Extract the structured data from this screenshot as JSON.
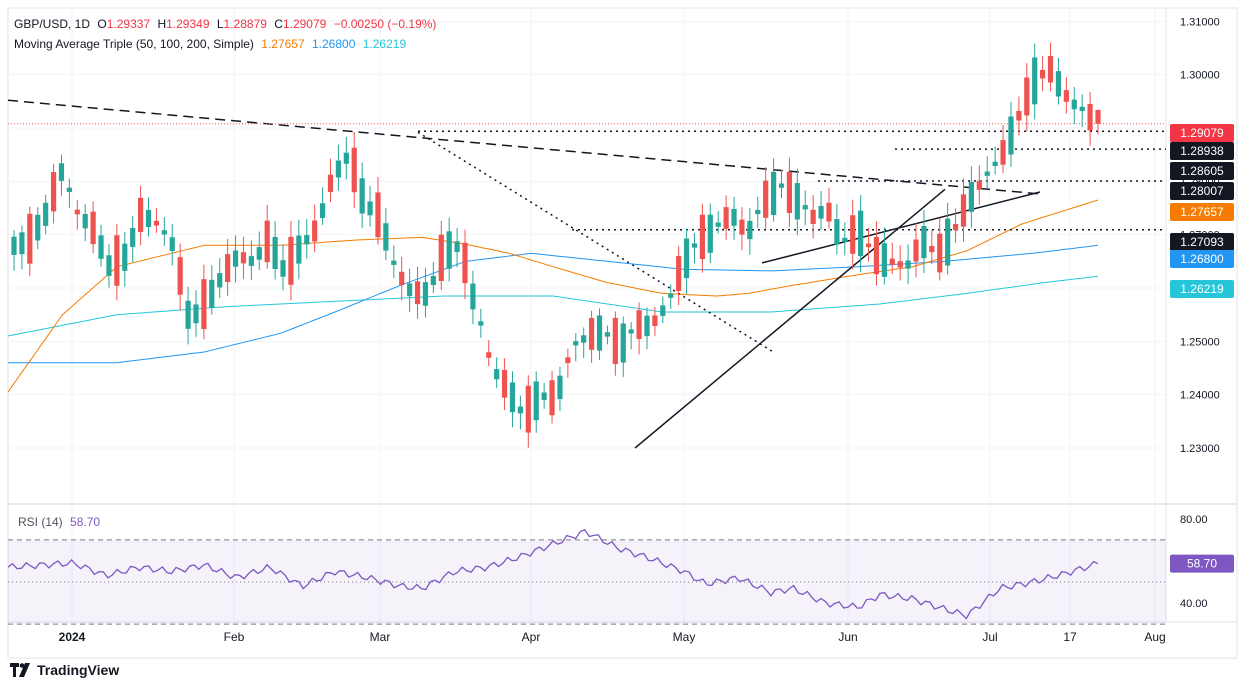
{
  "header": {
    "symbol": "GBP/USD, 1D",
    "ohlc": [
      {
        "k": "O",
        "v": "1.29337"
      },
      {
        "k": "H",
        "v": "1.29349"
      },
      {
        "k": "L",
        "v": "1.28879"
      },
      {
        "k": "C",
        "v": "1.29079"
      }
    ],
    "change": "−0.00250 (−0.19%)",
    "ma_label": "Moving Average Triple (50, 100, 200, Simple)",
    "ma_values": [
      "1.27657",
      "1.26800",
      "1.26219"
    ]
  },
  "rsi": {
    "label": "RSI (14)",
    "value": "58.70"
  },
  "brand": "TradingView",
  "colors": {
    "up": "#26a69a",
    "down": "#ef5350",
    "ma50": "#f57c00",
    "ma100": "#2196f3",
    "ma200": "#26c6da",
    "rsi": "#7e57c2",
    "price_badge": "#f23645",
    "level_badge": "#131722"
  },
  "chart_data": {
    "type": "candlestick",
    "price_axis": {
      "ticks": [
        "1.31000",
        "1.30000",
        "1.29000",
        "1.28000",
        "1.27000",
        "1.26000",
        "1.25000",
        "1.24000",
        "1.23000"
      ],
      "ylim": [
        1.2195,
        1.3125
      ]
    },
    "time_axis": {
      "labels": [
        "2024",
        "Feb",
        "Mar",
        "Apr",
        "May",
        "Jun",
        "Jul",
        "17",
        "Aug"
      ]
    },
    "badges": [
      {
        "label": "1.29079",
        "type": "last"
      },
      {
        "label": "1.28938",
        "type": "level"
      },
      {
        "label": "1.28605",
        "type": "level"
      },
      {
        "label": "1.28007",
        "type": "level"
      },
      {
        "label": "1.27657",
        "type": "ma50"
      },
      {
        "label": "1.27093",
        "type": "level"
      },
      {
        "label": "1.26800",
        "type": "ma100"
      },
      {
        "label": "1.26219",
        "type": "ma200"
      }
    ],
    "keypoints": [
      [
        1.27,
        1.268
      ],
      [
        1.2715,
        1.269
      ],
      [
        1.267,
        1.274
      ],
      [
        1.275,
        1.282
      ],
      [
        1.27,
        1.274
      ],
      [
        1.268,
        1.271
      ],
      [
        1.268,
        1.264
      ],
      [
        1.262,
        1.266
      ],
      [
        1.266,
        1.274
      ],
      [
        1.273,
        1.272
      ],
      [
        1.271,
        1.268
      ],
      [
        1.268,
        1.254
      ],
      [
        1.255,
        1.257
      ],
      [
        1.256,
        1.262
      ],
      [
        1.262,
        1.266
      ],
      [
        1.266,
        1.265
      ],
      [
        1.264,
        1.269
      ],
      [
        1.269,
        1.263
      ],
      [
        1.263,
        1.268
      ],
      [
        1.268,
        1.271
      ],
      [
        1.271,
        1.281
      ],
      [
        1.282,
        1.285
      ],
      [
        1.284,
        1.276
      ],
      [
        1.276,
        1.273
      ],
      [
        1.273,
        1.263
      ],
      [
        1.262,
        1.259
      ],
      [
        1.259,
        1.259
      ],
      [
        1.259,
        1.267
      ],
      [
        1.267,
        1.268
      ],
      [
        1.268,
        1.256
      ],
      [
        1.256,
        1.245
      ],
      [
        1.244,
        1.241
      ],
      [
        1.24,
        1.236
      ],
      [
        1.236,
        1.24
      ],
      [
        1.234,
        1.239
      ],
      [
        1.24,
        1.249
      ],
      [
        1.249,
        1.251
      ],
      [
        1.251,
        1.252
      ],
      [
        1.252,
        1.249
      ],
      [
        1.25,
        1.253
      ],
      [
        1.251,
        1.253
      ],
      [
        1.253,
        1.257
      ],
      [
        1.257,
        1.265
      ],
      [
        1.266,
        1.269
      ],
      [
        1.268,
        1.271
      ],
      [
        1.272,
        1.274
      ],
      [
        1.273,
        1.27
      ],
      [
        1.269,
        1.276
      ],
      [
        1.276,
        1.279
      ],
      [
        1.278,
        1.277
      ],
      [
        1.278,
        1.273
      ],
      [
        1.273,
        1.275
      ],
      [
        1.271,
        1.268
      ],
      [
        1.268,
        1.271
      ],
      [
        1.271,
        1.266
      ],
      [
        1.266,
        1.265
      ],
      [
        1.265,
        1.264
      ],
      [
        1.264,
        1.269
      ],
      [
        1.269,
        1.266
      ],
      [
        1.266,
        1.271
      ],
      [
        1.271,
        1.277
      ],
      [
        1.277,
        1.281
      ],
      [
        1.28,
        1.285
      ],
      [
        1.285,
        1.292
      ],
      [
        1.292,
        1.299
      ],
      [
        1.299,
        1.301
      ],
      [
        1.301,
        1.296
      ],
      [
        1.296,
        1.293
      ],
      [
        1.293,
        1.2908
      ]
    ],
    "ma50_keypoints": [
      [
        0,
        1.2405
      ],
      [
        0.05,
        1.255
      ],
      [
        0.1,
        1.264
      ],
      [
        0.18,
        1.268
      ],
      [
        0.25,
        1.268
      ],
      [
        0.32,
        1.269
      ],
      [
        0.38,
        1.2695
      ],
      [
        0.42,
        1.2682
      ],
      [
        0.46,
        1.2665
      ],
      [
        0.5,
        1.264
      ],
      [
        0.55,
        1.261
      ],
      [
        0.6,
        1.259
      ],
      [
        0.65,
        1.2585
      ],
      [
        0.68,
        1.259
      ],
      [
        0.72,
        1.2605
      ],
      [
        0.78,
        1.2625
      ],
      [
        0.83,
        1.264
      ],
      [
        0.88,
        1.267
      ],
      [
        0.93,
        1.272
      ],
      [
        1.0,
        1.2765
      ]
    ],
    "ma100_keypoints": [
      [
        0,
        1.246
      ],
      [
        0.1,
        1.246
      ],
      [
        0.18,
        1.248
      ],
      [
        0.25,
        1.2515
      ],
      [
        0.3,
        1.2555
      ],
      [
        0.36,
        1.2605
      ],
      [
        0.42,
        1.265
      ],
      [
        0.48,
        1.2665
      ],
      [
        0.55,
        1.265
      ],
      [
        0.62,
        1.2635
      ],
      [
        0.7,
        1.2632
      ],
      [
        0.78,
        1.264
      ],
      [
        0.86,
        1.265
      ],
      [
        0.94,
        1.2665
      ],
      [
        1.0,
        1.268
      ]
    ],
    "ma200_keypoints": [
      [
        0,
        1.251
      ],
      [
        0.1,
        1.255
      ],
      [
        0.2,
        1.2565
      ],
      [
        0.3,
        1.2575
      ],
      [
        0.4,
        1.2585
      ],
      [
        0.5,
        1.2585
      ],
      [
        0.6,
        1.2555
      ],
      [
        0.7,
        1.2555
      ],
      [
        0.8,
        1.257
      ],
      [
        0.88,
        1.259
      ],
      [
        0.95,
        1.261
      ],
      [
        1.0,
        1.2622
      ]
    ],
    "rsi_axis": {
      "ticks": [
        "80.00",
        "40.00"
      ],
      "ylim": [
        31,
        87
      ]
    },
    "rsi_keypoints": [
      [
        0,
        57
      ],
      [
        0.03,
        58
      ],
      [
        0.06,
        59
      ],
      [
        0.09,
        53
      ],
      [
        0.12,
        57
      ],
      [
        0.15,
        55
      ],
      [
        0.18,
        58
      ],
      [
        0.21,
        52
      ],
      [
        0.24,
        57
      ],
      [
        0.27,
        48
      ],
      [
        0.3,
        55
      ],
      [
        0.33,
        52
      ],
      [
        0.36,
        48
      ],
      [
        0.38,
        47
      ],
      [
        0.41,
        55
      ],
      [
        0.44,
        57
      ],
      [
        0.47,
        62
      ],
      [
        0.5,
        68
      ],
      [
        0.53,
        74
      ],
      [
        0.56,
        66
      ],
      [
        0.59,
        61
      ],
      [
        0.62,
        55
      ],
      [
        0.64,
        49
      ],
      [
        0.67,
        52
      ],
      [
        0.7,
        45
      ],
      [
        0.72,
        47
      ],
      [
        0.75,
        40
      ],
      [
        0.78,
        38
      ],
      [
        0.8,
        44
      ],
      [
        0.83,
        42
      ],
      [
        0.86,
        37
      ],
      [
        0.88,
        34
      ],
      [
        0.91,
        47
      ],
      [
        0.94,
        50
      ],
      [
        0.97,
        54
      ],
      [
        1.0,
        58.7
      ]
    ]
  }
}
